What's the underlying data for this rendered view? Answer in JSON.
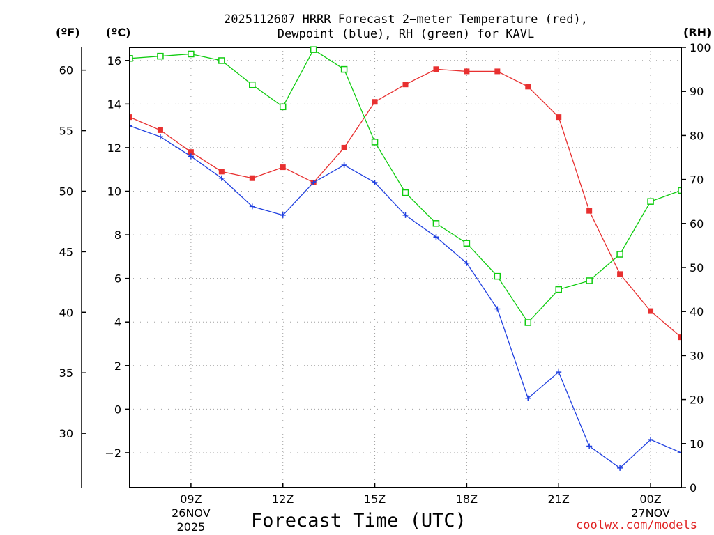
{
  "title_line1": "2025112607 HRRR Forecast 2−meter Temperature (red),",
  "title_line2": "Dewpoint (blue), RH (green) for KAVL",
  "units": {
    "fahrenheit": "(ºF)",
    "celsius": "(ºC)",
    "rh": "(RH)"
  },
  "xlabel": "Forecast Time (UTC)",
  "credit": "coolwx.com/models",
  "colors": {
    "temperature": "#e83030",
    "dewpoint": "#2040e0",
    "rh": "#10cc10",
    "grid": "#a0a0a0"
  },
  "chart_data": {
    "type": "line",
    "title": "2025112607 HRRR Forecast 2-meter Temperature (red), Dewpoint (blue), RH (green) for KAVL",
    "xlabel": "Forecast Time (UTC)",
    "x_hours_since_07Z": [
      0,
      1,
      2,
      3,
      4,
      5,
      6,
      7,
      8,
      9,
      10,
      11,
      12,
      13,
      14,
      15,
      16,
      17,
      18
    ],
    "x_range": [
      0,
      18
    ],
    "x_ticks": [
      {
        "hour": 2,
        "label": "09Z",
        "sub1": "26NOV",
        "sub2": "2025"
      },
      {
        "hour": 5,
        "label": "12Z",
        "sub1": "",
        "sub2": ""
      },
      {
        "hour": 8,
        "label": "15Z",
        "sub1": "",
        "sub2": ""
      },
      {
        "hour": 11,
        "label": "18Z",
        "sub1": "",
        "sub2": ""
      },
      {
        "hour": 14,
        "label": "21Z",
        "sub1": "",
        "sub2": ""
      },
      {
        "hour": 17,
        "label": "00Z",
        "sub1": "27NOV",
        "sub2": ""
      }
    ],
    "y_celsius_range": [
      -3.6,
      16.6
    ],
    "y_celsius_ticks": [
      -2,
      0,
      2,
      4,
      6,
      8,
      10,
      12,
      14,
      16
    ],
    "y_celsius_tick_labels": [
      "−2",
      "0",
      "2",
      "4",
      "6",
      "8",
      "10",
      "12",
      "14",
      "16"
    ],
    "y_fahrenheit_ticks": [
      30,
      35,
      40,
      45,
      50,
      55,
      60
    ],
    "y_rh_range": [
      0,
      100
    ],
    "y_rh_ticks": [
      0,
      10,
      20,
      30,
      40,
      50,
      60,
      70,
      80,
      90,
      100
    ],
    "series": [
      {
        "name": "Temperature",
        "axis": "celsius",
        "marker": "filled-square",
        "values": [
          13.4,
          12.8,
          11.8,
          10.9,
          10.6,
          11.1,
          10.4,
          12.0,
          14.1,
          14.9,
          15.6,
          15.5,
          15.5,
          14.8,
          13.4,
          9.1,
          6.2,
          4.5,
          3.3
        ]
      },
      {
        "name": "Dewpoint",
        "axis": "celsius",
        "marker": "plus",
        "values": [
          13.0,
          12.5,
          11.6,
          10.6,
          9.3,
          8.9,
          10.4,
          11.2,
          10.4,
          8.9,
          7.9,
          6.7,
          4.6,
          0.5,
          1.7,
          -1.7,
          -2.7,
          -1.4,
          -2.0
        ]
      },
      {
        "name": "RH",
        "axis": "rh",
        "marker": "open-square",
        "values": [
          97.5,
          98.0,
          98.5,
          97.0,
          91.5,
          86.5,
          99.5,
          95.0,
          78.5,
          67.0,
          60.0,
          55.5,
          48.0,
          37.5,
          45.0,
          47.0,
          53.0,
          65.0,
          67.5
        ]
      }
    ]
  }
}
